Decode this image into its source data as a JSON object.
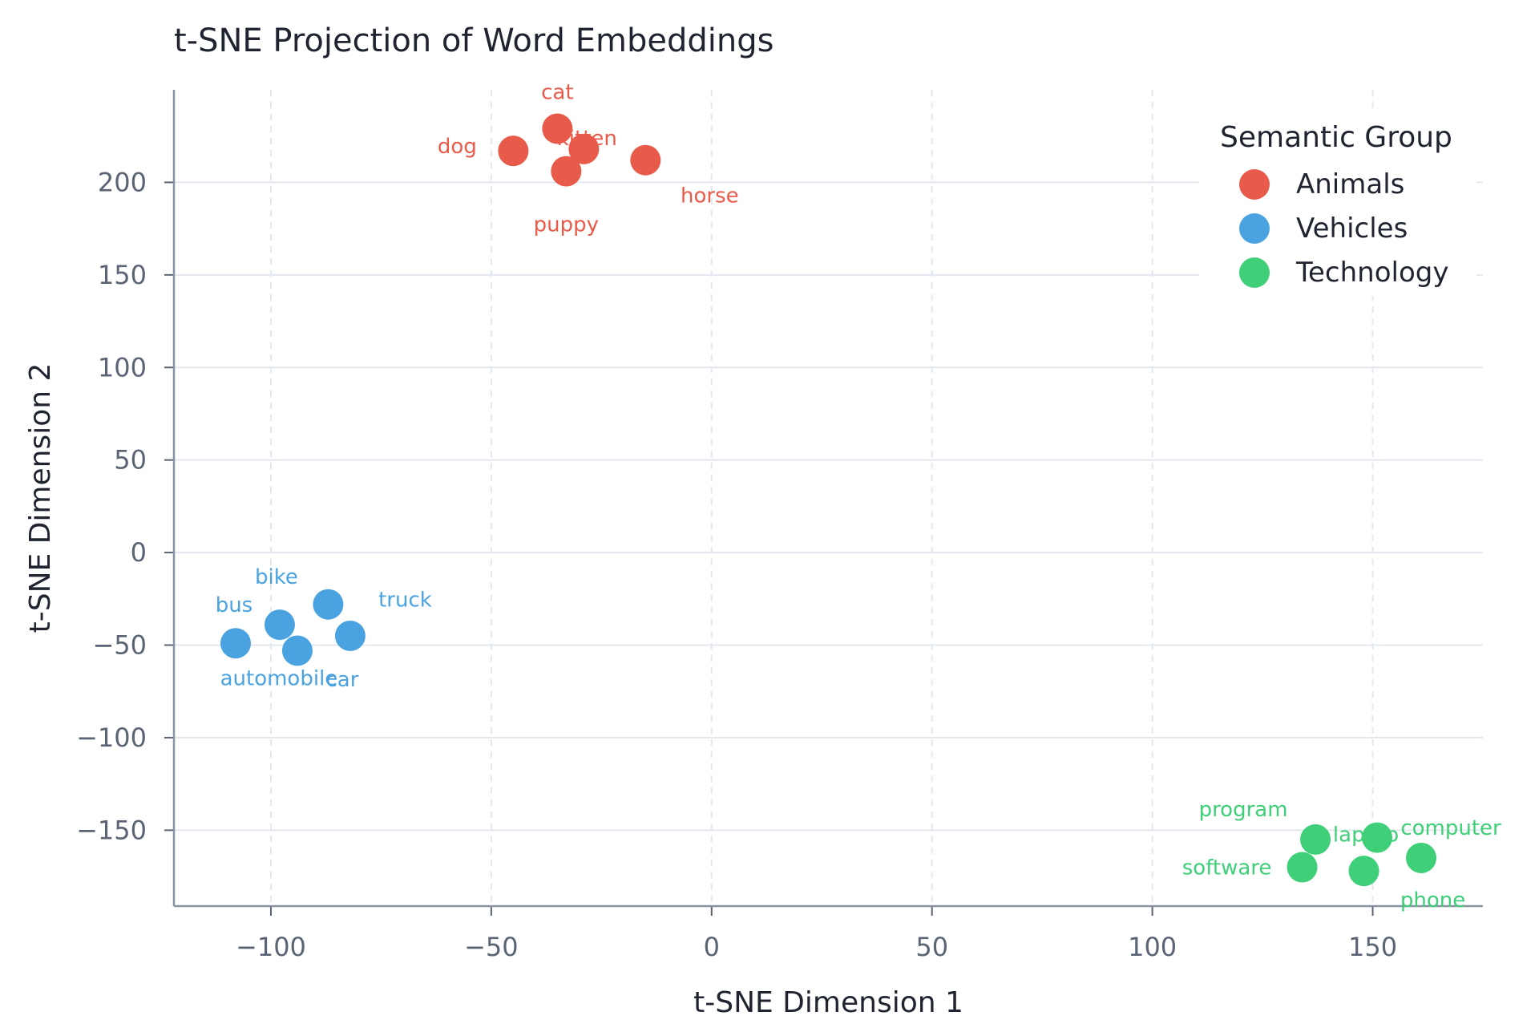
{
  "chart_data": {
    "type": "scatter",
    "title": "t-SNE Projection of Word Embeddings",
    "xlabel": "t-SNE Dimension 1",
    "ylabel": "t-SNE Dimension 2",
    "xlim": [
      -122,
      175
    ],
    "ylim": [
      -191,
      250
    ],
    "xticks": [
      -100,
      -50,
      0,
      50,
      100,
      150
    ],
    "yticks": [
      -150,
      -100,
      -50,
      0,
      50,
      100,
      150,
      200
    ],
    "xtick_labels": [
      "−100",
      "−50",
      "0",
      "50",
      "100",
      "150"
    ],
    "ytick_labels": [
      "−150",
      "−100",
      "−50",
      "0",
      "50",
      "100",
      "150",
      "200"
    ],
    "x_grid": "dashed",
    "y_grid": "solid",
    "legend": {
      "title": "Semantic Group",
      "position": "top-right"
    },
    "series": [
      {
        "name": "Animals",
        "color": "#e85a4a",
        "points": [
          {
            "label": "cat",
            "x": -35,
            "y": 229
          },
          {
            "label": "dog",
            "x": -45,
            "y": 217
          },
          {
            "label": "kitten",
            "x": -29,
            "y": 218
          },
          {
            "label": "puppy",
            "x": -33,
            "y": 206
          },
          {
            "label": "horse",
            "x": -15,
            "y": 212
          }
        ]
      },
      {
        "name": "Vehicles",
        "color": "#4aa3e0",
        "points": [
          {
            "label": "bike",
            "x": -98,
            "y": -39
          },
          {
            "label": "bus",
            "x": -108,
            "y": -49
          },
          {
            "label": "truck",
            "x": -87,
            "y": -28
          },
          {
            "label": "car",
            "x": -82,
            "y": -45
          },
          {
            "label": "automobile",
            "x": -94,
            "y": -53
          }
        ]
      },
      {
        "name": "Technology",
        "color": "#3ecf78",
        "points": [
          {
            "label": "program",
            "x": 137,
            "y": -155
          },
          {
            "label": "laptop",
            "x": 151,
            "y": -154
          },
          {
            "label": "computer",
            "x": 161,
            "y": -165
          },
          {
            "label": "software",
            "x": 134,
            "y": -170
          },
          {
            "label": "phone",
            "x": 148,
            "y": -172
          }
        ]
      }
    ]
  }
}
